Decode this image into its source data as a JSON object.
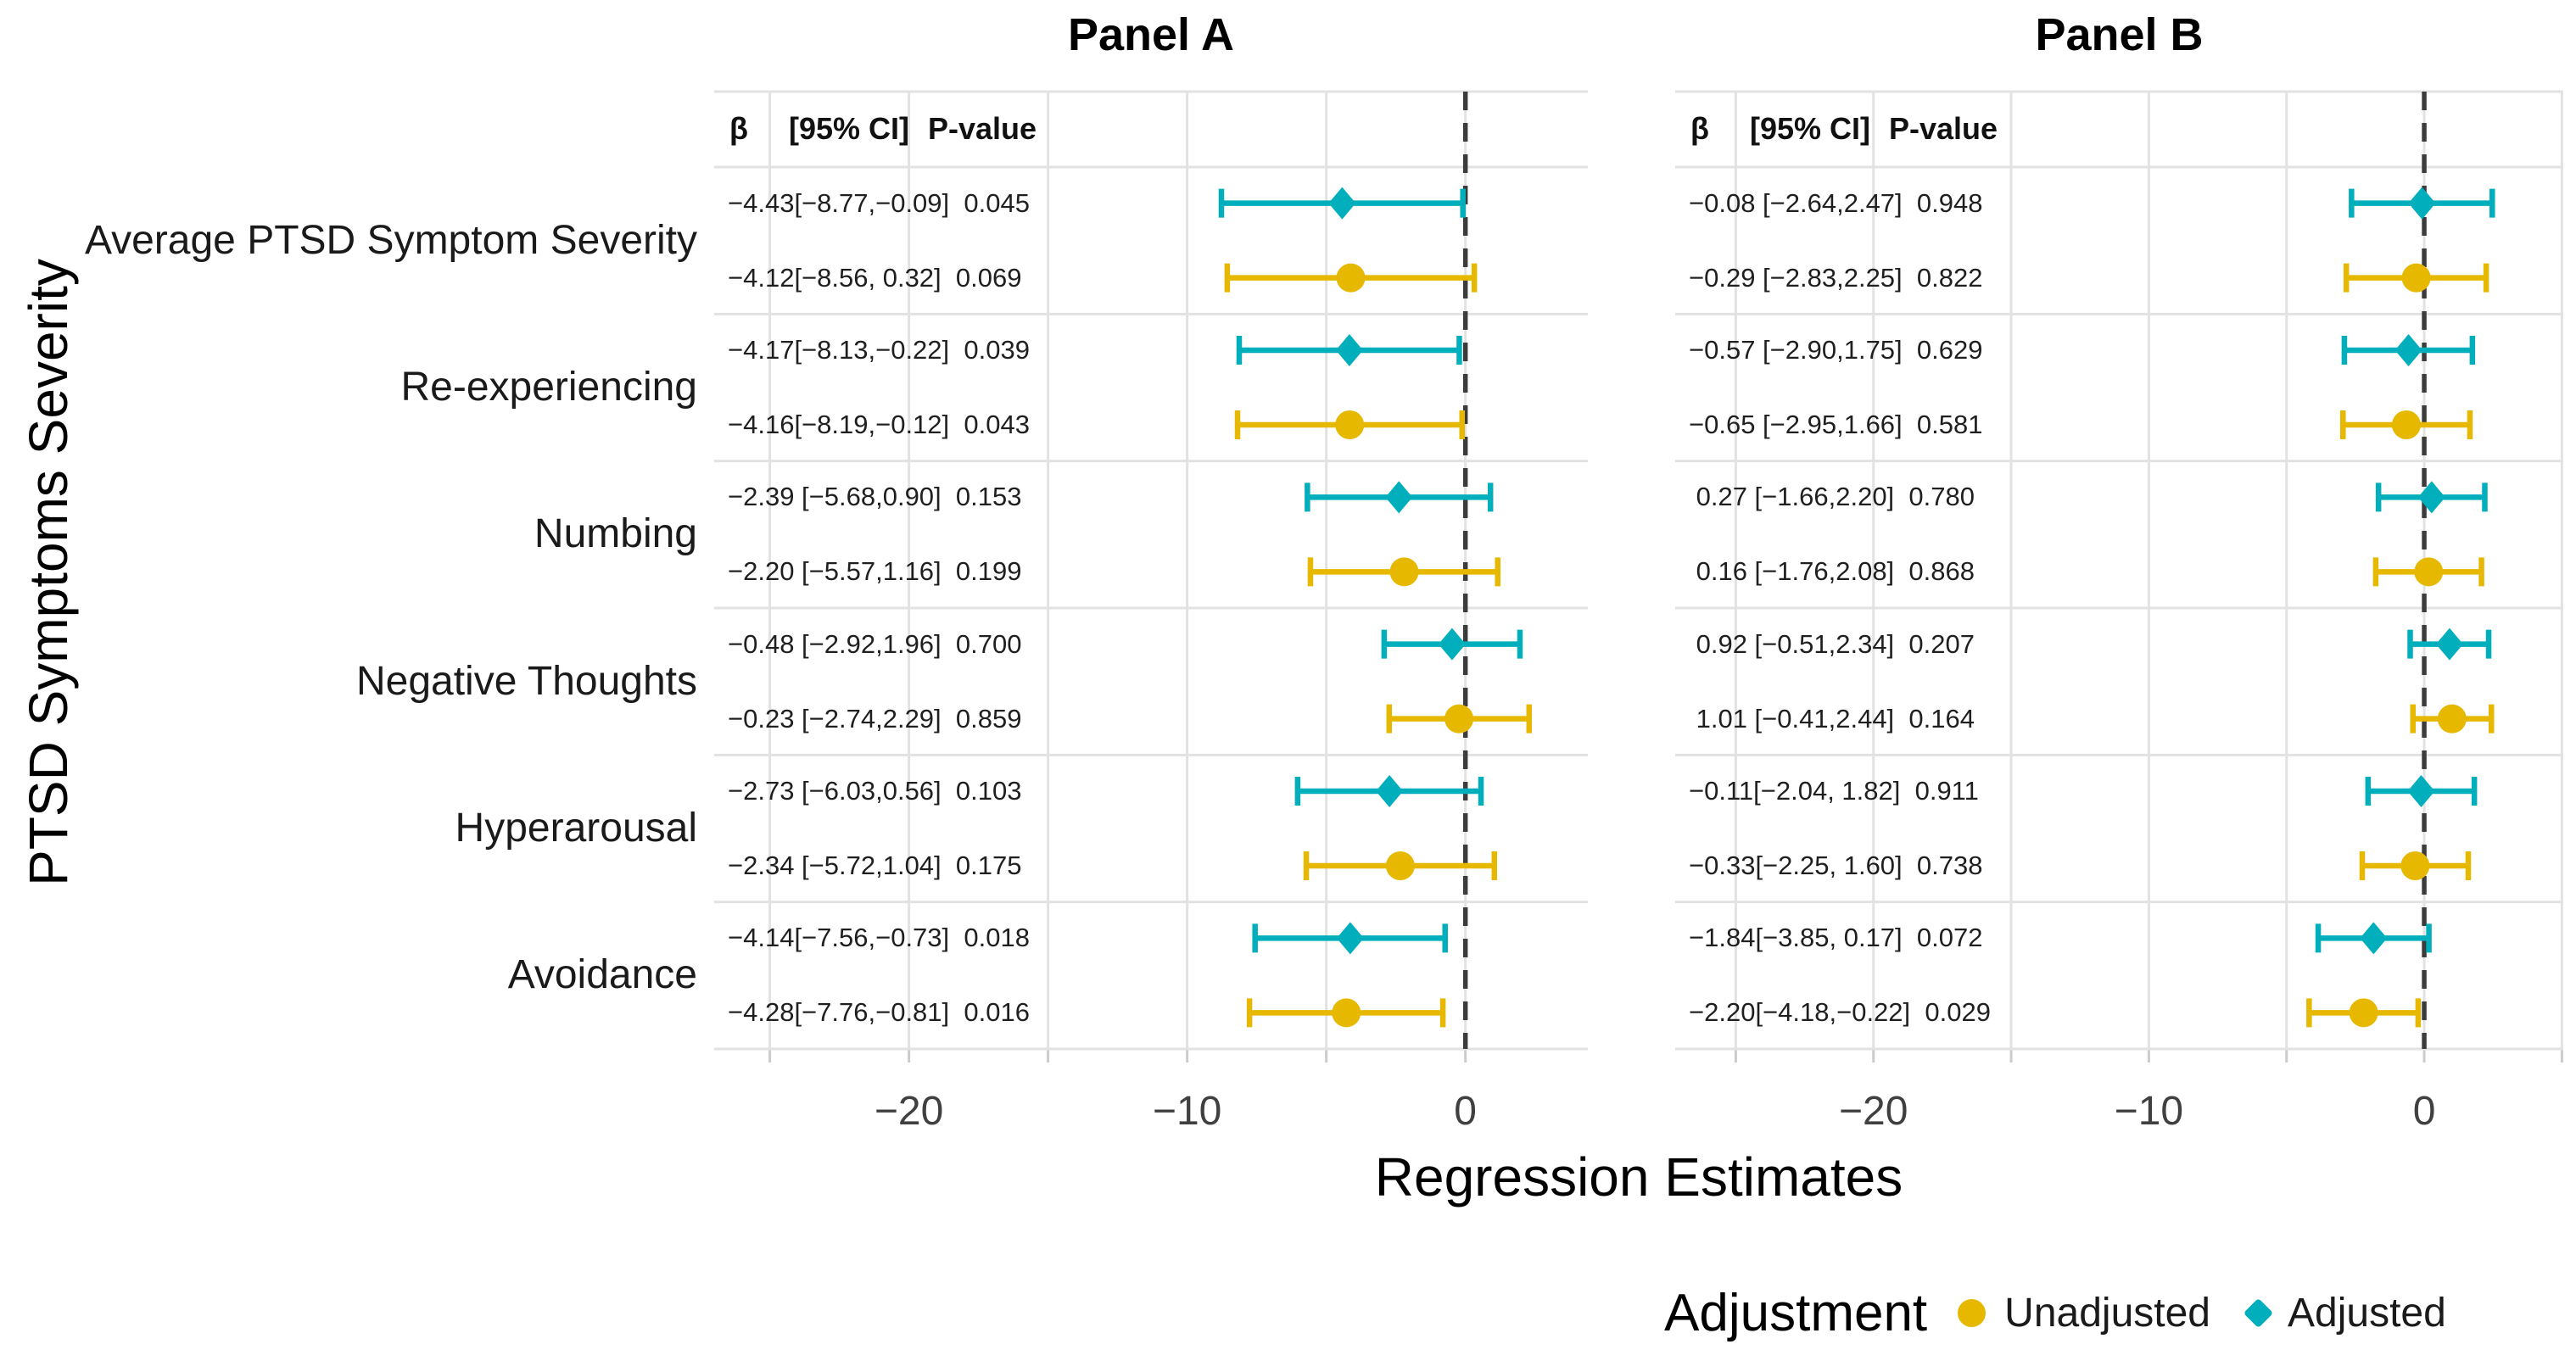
{
  "figure": {
    "y_axis_label": "PTSD Symptoms Severity",
    "x_axis_label": "Regression Estimates",
    "colors": {
      "adjusted": "#00AFBB",
      "unadjusted": "#E7B800",
      "gridline": "#E2E2E2",
      "tick_stub": "#CCCCCC",
      "zero_line": "#3C3C3C",
      "annotation_text": "#1F1F1F",
      "tick_text": "#404040"
    }
  },
  "column_header": {
    "beta": "β",
    "ci": "[95% CI]",
    "p": "P-value"
  },
  "categories": [
    "Average PTSD Symptom Severity",
    "Re-experiencing",
    "Numbing",
    "Negative Thoughts",
    "Hyperarousal",
    "Avoidance"
  ],
  "legend": {
    "title": "Adjustment",
    "items": [
      {
        "label": "Unadjusted",
        "marker": "circle",
        "color": "#E7B800"
      },
      {
        "label": "Adjusted",
        "marker": "diamond",
        "color": "#00AFBB"
      }
    ]
  },
  "chart_data": [
    {
      "type": "scatter",
      "panel": "Panel A",
      "xlabel": "Regression Estimates",
      "ylabel": "PTSD Symptoms Severity",
      "xlim": [
        -27.0,
        4.4
      ],
      "xticks": [
        -20,
        -10,
        0
      ],
      "gridlines": [
        -25,
        -20,
        -15,
        -10,
        -5,
        0
      ],
      "zero_reference_line": 0,
      "grid": true,
      "rows": [
        {
          "category": "Average PTSD Symptom Severity",
          "series": "Adjusted",
          "beta": -4.43,
          "ci": [
            -8.77,
            -0.09
          ],
          "p": 0.045,
          "text": "−4.43[−8.77,−0.09]  0.045"
        },
        {
          "category": "Average PTSD Symptom Severity",
          "series": "Unadjusted",
          "beta": -4.12,
          "ci": [
            -8.56,
            0.32
          ],
          "p": 0.069,
          "text": "−4.12[−8.56, 0.32]  0.069"
        },
        {
          "category": "Re-experiencing",
          "series": "Adjusted",
          "beta": -4.17,
          "ci": [
            -8.13,
            -0.22
          ],
          "p": 0.039,
          "text": "−4.17[−8.13,−0.22]  0.039"
        },
        {
          "category": "Re-experiencing",
          "series": "Unadjusted",
          "beta": -4.16,
          "ci": [
            -8.19,
            -0.12
          ],
          "p": 0.043,
          "text": "−4.16[−8.19,−0.12]  0.043"
        },
        {
          "category": "Numbing",
          "series": "Adjusted",
          "beta": -2.39,
          "ci": [
            -5.68,
            0.9
          ],
          "p": 0.153,
          "text": "−2.39 [−5.68,0.90]  0.153"
        },
        {
          "category": "Numbing",
          "series": "Unadjusted",
          "beta": -2.2,
          "ci": [
            -5.57,
            1.16
          ],
          "p": 0.199,
          "text": "−2.20 [−5.57,1.16]  0.199"
        },
        {
          "category": "Negative Thoughts",
          "series": "Adjusted",
          "beta": -0.48,
          "ci": [
            -2.92,
            1.96
          ],
          "p": 0.7,
          "text": "−0.48 [−2.92,1.96]  0.700"
        },
        {
          "category": "Negative Thoughts",
          "series": "Unadjusted",
          "beta": -0.23,
          "ci": [
            -2.74,
            2.29
          ],
          "p": 0.859,
          "text": "−0.23 [−2.74,2.29]  0.859"
        },
        {
          "category": "Hyperarousal",
          "series": "Adjusted",
          "beta": -2.73,
          "ci": [
            -6.03,
            0.56
          ],
          "p": 0.103,
          "text": "−2.73 [−6.03,0.56]  0.103"
        },
        {
          "category": "Hyperarousal",
          "series": "Unadjusted",
          "beta": -2.34,
          "ci": [
            -5.72,
            1.04
          ],
          "p": 0.175,
          "text": "−2.34 [−5.72,1.04]  0.175"
        },
        {
          "category": "Avoidance",
          "series": "Adjusted",
          "beta": -4.14,
          "ci": [
            -7.56,
            -0.73
          ],
          "p": 0.018,
          "text": "−4.14[−7.56,−0.73]  0.018"
        },
        {
          "category": "Avoidance",
          "series": "Unadjusted",
          "beta": -4.28,
          "ci": [
            -7.76,
            -0.81
          ],
          "p": 0.016,
          "text": "−4.28[−7.76,−0.81]  0.016"
        }
      ]
    },
    {
      "type": "scatter",
      "panel": "Panel B",
      "xlabel": "Regression Estimates",
      "ylabel": "PTSD Symptoms Severity",
      "xlim": [
        -27.2,
        5.05
      ],
      "xticks": [
        -20,
        -10,
        0
      ],
      "gridlines": [
        -25,
        -20,
        -15,
        -10,
        -5,
        0,
        5
      ],
      "zero_reference_line": 0,
      "grid": true,
      "rows": [
        {
          "category": "Average PTSD Symptom Severity",
          "series": "Adjusted",
          "beta": -0.08,
          "ci": [
            -2.64,
            2.47
          ],
          "p": 0.948,
          "text": "−0.08 [−2.64,2.47]  0.948"
        },
        {
          "category": "Average PTSD Symptom Severity",
          "series": "Unadjusted",
          "beta": -0.29,
          "ci": [
            -2.83,
            2.25
          ],
          "p": 0.822,
          "text": "−0.29 [−2.83,2.25]  0.822"
        },
        {
          "category": "Re-experiencing",
          "series": "Adjusted",
          "beta": -0.57,
          "ci": [
            -2.9,
            1.75
          ],
          "p": 0.629,
          "text": "−0.57 [−2.90,1.75]  0.629"
        },
        {
          "category": "Re-experiencing",
          "series": "Unadjusted",
          "beta": -0.65,
          "ci": [
            -2.95,
            1.66
          ],
          "p": 0.581,
          "text": "−0.65 [−2.95,1.66]  0.581"
        },
        {
          "category": "Numbing",
          "series": "Adjusted",
          "beta": 0.27,
          "ci": [
            -1.66,
            2.2
          ],
          "p": 0.78,
          "text": " 0.27 [−1.66,2.20]  0.780"
        },
        {
          "category": "Numbing",
          "series": "Unadjusted",
          "beta": 0.16,
          "ci": [
            -1.76,
            2.08
          ],
          "p": 0.868,
          "text": " 0.16 [−1.76,2.08]  0.868"
        },
        {
          "category": "Negative Thoughts",
          "series": "Adjusted",
          "beta": 0.92,
          "ci": [
            -0.51,
            2.34
          ],
          "p": 0.207,
          "text": " 0.92 [−0.51,2.34]  0.207"
        },
        {
          "category": "Negative Thoughts",
          "series": "Unadjusted",
          "beta": 1.01,
          "ci": [
            -0.41,
            2.44
          ],
          "p": 0.164,
          "text": " 1.01 [−0.41,2.44]  0.164"
        },
        {
          "category": "Hyperarousal",
          "series": "Adjusted",
          "beta": -0.11,
          "ci": [
            -2.04,
            1.82
          ],
          "p": 0.911,
          "text": "−0.11[−2.04, 1.82]  0.911"
        },
        {
          "category": "Hyperarousal",
          "series": "Unadjusted",
          "beta": -0.33,
          "ci": [
            -2.25,
            1.6
          ],
          "p": 0.738,
          "text": "−0.33[−2.25, 1.60]  0.738"
        },
        {
          "category": "Avoidance",
          "series": "Adjusted",
          "beta": -1.84,
          "ci": [
            -3.85,
            0.17
          ],
          "p": 0.072,
          "text": "−1.84[−3.85, 0.17]  0.072"
        },
        {
          "category": "Avoidance",
          "series": "Unadjusted",
          "beta": -2.2,
          "ci": [
            -4.18,
            -0.22
          ],
          "p": 0.029,
          "text": "−2.20[−4.18,−0.22]  0.029"
        }
      ]
    }
  ]
}
